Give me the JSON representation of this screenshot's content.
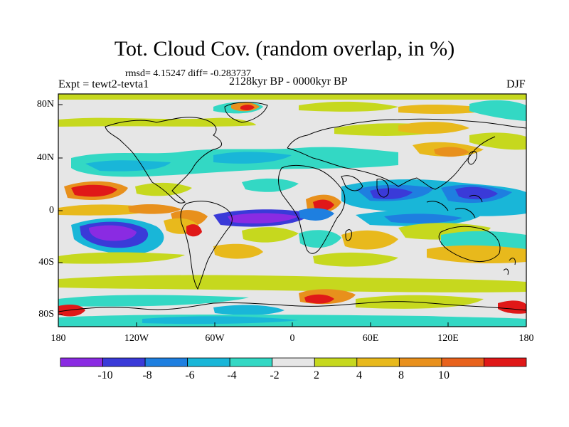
{
  "title": "Tot. Cloud Cov. (random overlap, in %)",
  "stats": "rmsd= 4.15247 diff= -0.283737",
  "experiment": "Expt = tewt2-tevta1",
  "period": "2128kyr BP - 0000kyr BP",
  "season": "DJF",
  "lat_ticks": [
    {
      "value": 80,
      "label": "80N"
    },
    {
      "value": 40,
      "label": "40N"
    },
    {
      "value": 0,
      "label": "0"
    },
    {
      "value": -40,
      "label": "40S"
    },
    {
      "value": -80,
      "label": "80S"
    }
  ],
  "lon_ticks": [
    {
      "value": -180,
      "label": "180"
    },
    {
      "value": -120,
      "label": "120W"
    },
    {
      "value": -60,
      "label": "60W"
    },
    {
      "value": 0,
      "label": "0"
    },
    {
      "value": 60,
      "label": "60E"
    },
    {
      "value": 120,
      "label": "120E"
    },
    {
      "value": 180,
      "label": "180"
    }
  ],
  "colorbar": {
    "colors": [
      "#8a2be2",
      "#3a3ad8",
      "#1e7fe0",
      "#19b6d8",
      "#33d8c4",
      "#e6e6e6",
      "#c6d81e",
      "#e8b91c",
      "#e8901c",
      "#e8621c",
      "#e01818"
    ],
    "labels": [
      {
        "value": -10,
        "label": "-10"
      },
      {
        "value": -8,
        "label": "-8"
      },
      {
        "value": -6,
        "label": "-6"
      },
      {
        "value": -4,
        "label": "-4"
      },
      {
        "value": -2,
        "label": "-2"
      },
      {
        "value": 2,
        "label": "2"
      },
      {
        "value": 4,
        "label": "4"
      },
      {
        "value": 8,
        "label": "8"
      },
      {
        "value": 10,
        "label": "10"
      }
    ]
  },
  "colors": {
    "background": "#e6e6e6",
    "coast": "#000000"
  }
}
